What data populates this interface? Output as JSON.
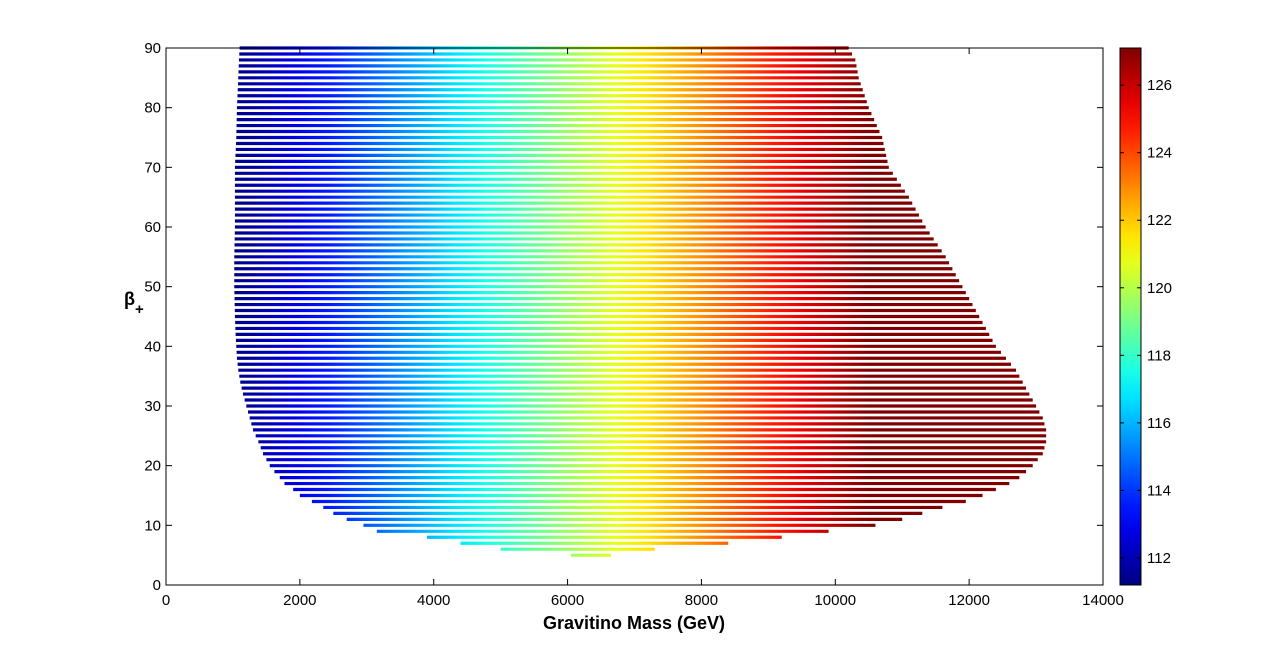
{
  "chart_data": {
    "type": "scatter",
    "title": "",
    "xlabel": "Gravitino Mass (GeV)",
    "ylabel_main": "β",
    "ylabel_sub": "+",
    "xlim": [
      0,
      14000
    ],
    "ylim": [
      0,
      90
    ],
    "xticks": [
      0,
      2000,
      4000,
      6000,
      8000,
      10000,
      12000,
      14000
    ],
    "yticks": [
      0,
      10,
      20,
      30,
      40,
      50,
      60,
      70,
      80,
      90
    ],
    "grid": false,
    "legend": "none",
    "colorbar": {
      "colormap": "jet",
      "range": [
        111.2,
        127.1
      ],
      "ticks": [
        112,
        114,
        116,
        118,
        120,
        122,
        124,
        126
      ]
    },
    "color_variable_range_along_x": [
      111.2,
      127.1
    ],
    "beta_step": 1,
    "region_rows": [
      {
        "beta": 5,
        "xmin": 6050,
        "xmax": 6650
      },
      {
        "beta": 6,
        "xmin": 5000,
        "xmax": 7300
      },
      {
        "beta": 7,
        "xmin": 4400,
        "xmax": 8400
      },
      {
        "beta": 8,
        "xmin": 3900,
        "xmax": 9200
      },
      {
        "beta": 9,
        "xmin": 3150,
        "xmax": 9900
      },
      {
        "beta": 10,
        "xmin": 2950,
        "xmax": 10600
      },
      {
        "beta": 11,
        "xmin": 2700,
        "xmax": 11000
      },
      {
        "beta": 12,
        "xmin": 2500,
        "xmax": 11300
      },
      {
        "beta": 13,
        "xmin": 2350,
        "xmax": 11600
      },
      {
        "beta": 14,
        "xmin": 2180,
        "xmax": 11950
      },
      {
        "beta": 15,
        "xmin": 2000,
        "xmax": 12200
      },
      {
        "beta": 16,
        "xmin": 1900,
        "xmax": 12400
      },
      {
        "beta": 17,
        "xmin": 1770,
        "xmax": 12600
      },
      {
        "beta": 18,
        "xmin": 1700,
        "xmax": 12750
      },
      {
        "beta": 19,
        "xmin": 1620,
        "xmax": 12850
      },
      {
        "beta": 20,
        "xmin": 1550,
        "xmax": 12950
      },
      {
        "beta": 22,
        "xmin": 1450,
        "xmax": 13100
      },
      {
        "beta": 24,
        "xmin": 1380,
        "xmax": 13150
      },
      {
        "beta": 26,
        "xmin": 1300,
        "xmax": 13150
      },
      {
        "beta": 28,
        "xmin": 1250,
        "xmax": 13100
      },
      {
        "beta": 30,
        "xmin": 1200,
        "xmax": 13000
      },
      {
        "beta": 32,
        "xmin": 1150,
        "xmax": 12900
      },
      {
        "beta": 34,
        "xmin": 1110,
        "xmax": 12800
      },
      {
        "beta": 36,
        "xmin": 1080,
        "xmax": 12700
      },
      {
        "beta": 38,
        "xmin": 1060,
        "xmax": 12550
      },
      {
        "beta": 40,
        "xmin": 1050,
        "xmax": 12400
      },
      {
        "beta": 42,
        "xmin": 1040,
        "xmax": 12300
      },
      {
        "beta": 45,
        "xmin": 1030,
        "xmax": 12150
      },
      {
        "beta": 50,
        "xmin": 1020,
        "xmax": 11900
      },
      {
        "beta": 55,
        "xmin": 1020,
        "xmax": 11650
      },
      {
        "beta": 60,
        "xmin": 1030,
        "xmax": 11350
      },
      {
        "beta": 65,
        "xmin": 1030,
        "xmax": 11100
      },
      {
        "beta": 70,
        "xmin": 1030,
        "xmax": 10800
      },
      {
        "beta": 75,
        "xmin": 1050,
        "xmax": 10700
      },
      {
        "beta": 80,
        "xmin": 1060,
        "xmax": 10500
      },
      {
        "beta": 85,
        "xmin": 1080,
        "xmax": 10350
      },
      {
        "beta": 88,
        "xmin": 1090,
        "xmax": 10300
      },
      {
        "beta": 90,
        "xmin": 1100,
        "xmax": 10200
      }
    ]
  }
}
